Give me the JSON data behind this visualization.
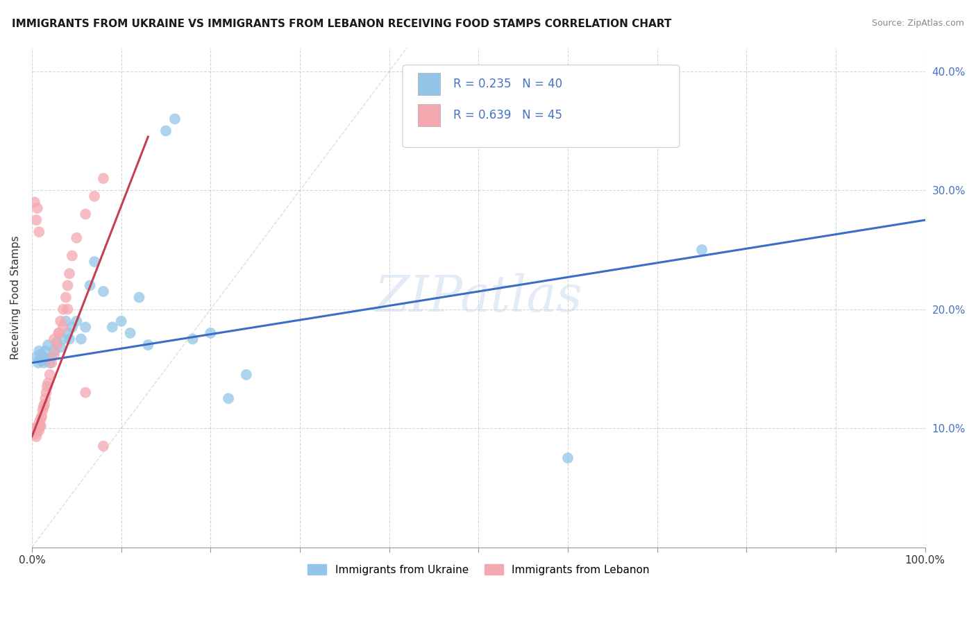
{
  "title": "IMMIGRANTS FROM UKRAINE VS IMMIGRANTS FROM LEBANON RECEIVING FOOD STAMPS CORRELATION CHART",
  "source": "Source: ZipAtlas.com",
  "ylabel": "Receiving Food Stamps",
  "xlim": [
    0.0,
    1.0
  ],
  "ylim": [
    0.0,
    0.42
  ],
  "xtick_positions": [
    0.0,
    0.1,
    0.2,
    0.3,
    0.4,
    0.5,
    0.6,
    0.7,
    0.8,
    0.9,
    1.0
  ],
  "xtick_labels_show": {
    "0.0": "0.0%",
    "1.0": "100.0%"
  },
  "yticks": [
    0.0,
    0.1,
    0.2,
    0.3,
    0.4
  ],
  "yticklabels_right": [
    "",
    "10.0%",
    "20.0%",
    "30.0%",
    "40.0%"
  ],
  "ukraine_R": 0.235,
  "ukraine_N": 40,
  "lebanon_R": 0.639,
  "lebanon_N": 45,
  "ukraine_color": "#92C5E8",
  "lebanon_color": "#F4A8B0",
  "ukraine_line_color": "#3B6DC7",
  "lebanon_line_color": "#C44050",
  "legend_ukraine_label": "Immigrants from Ukraine",
  "legend_lebanon_label": "Immigrants from Lebanon",
  "watermark": "ZIPatlas",
  "background_color": "#FFFFFF",
  "grid_color": "#CCCCCC",
  "ukraine_line_x": [
    0.0,
    1.0
  ],
  "ukraine_line_y": [
    0.155,
    0.275
  ],
  "lebanon_line_x": [
    0.0,
    0.13
  ],
  "lebanon_line_y": [
    0.093,
    0.345
  ],
  "diag_line_x": [
    0.0,
    0.42
  ],
  "diag_line_y": [
    0.0,
    0.42
  ],
  "ukraine_x": [
    0.005,
    0.007,
    0.008,
    0.009,
    0.01,
    0.011,
    0.012,
    0.013,
    0.015,
    0.016,
    0.018,
    0.02,
    0.022,
    0.025,
    0.028,
    0.032,
    0.035,
    0.038,
    0.04,
    0.042,
    0.045,
    0.05,
    0.055,
    0.06,
    0.065,
    0.07,
    0.08,
    0.09,
    0.1,
    0.11,
    0.12,
    0.13,
    0.15,
    0.16,
    0.18,
    0.2,
    0.22,
    0.24,
    0.75,
    0.6
  ],
  "ukraine_y": [
    0.16,
    0.155,
    0.165,
    0.158,
    0.162,
    0.157,
    0.16,
    0.155,
    0.165,
    0.158,
    0.17,
    0.155,
    0.16,
    0.165,
    0.172,
    0.168,
    0.175,
    0.19,
    0.18,
    0.175,
    0.185,
    0.19,
    0.175,
    0.185,
    0.22,
    0.24,
    0.215,
    0.185,
    0.19,
    0.18,
    0.21,
    0.17,
    0.35,
    0.36,
    0.175,
    0.18,
    0.125,
    0.145,
    0.25,
    0.075
  ],
  "lebanon_x": [
    0.002,
    0.003,
    0.004,
    0.005,
    0.005,
    0.006,
    0.007,
    0.008,
    0.008,
    0.009,
    0.01,
    0.011,
    0.012,
    0.013,
    0.014,
    0.015,
    0.016,
    0.017,
    0.018,
    0.02,
    0.022,
    0.025,
    0.028,
    0.03,
    0.032,
    0.035,
    0.038,
    0.04,
    0.042,
    0.045,
    0.05,
    0.06,
    0.07,
    0.08,
    0.025,
    0.03,
    0.035,
    0.04,
    0.06,
    0.08,
    0.003,
    0.005,
    0.006,
    0.008,
    0.01
  ],
  "lebanon_y": [
    0.1,
    0.095,
    0.098,
    0.1,
    0.093,
    0.097,
    0.1,
    0.105,
    0.098,
    0.102,
    0.108,
    0.11,
    0.115,
    0.118,
    0.12,
    0.125,
    0.13,
    0.135,
    0.138,
    0.145,
    0.155,
    0.162,
    0.17,
    0.18,
    0.19,
    0.2,
    0.21,
    0.22,
    0.23,
    0.245,
    0.26,
    0.28,
    0.295,
    0.31,
    0.175,
    0.18,
    0.185,
    0.2,
    0.13,
    0.085,
    0.29,
    0.275,
    0.285,
    0.265,
    0.102
  ]
}
